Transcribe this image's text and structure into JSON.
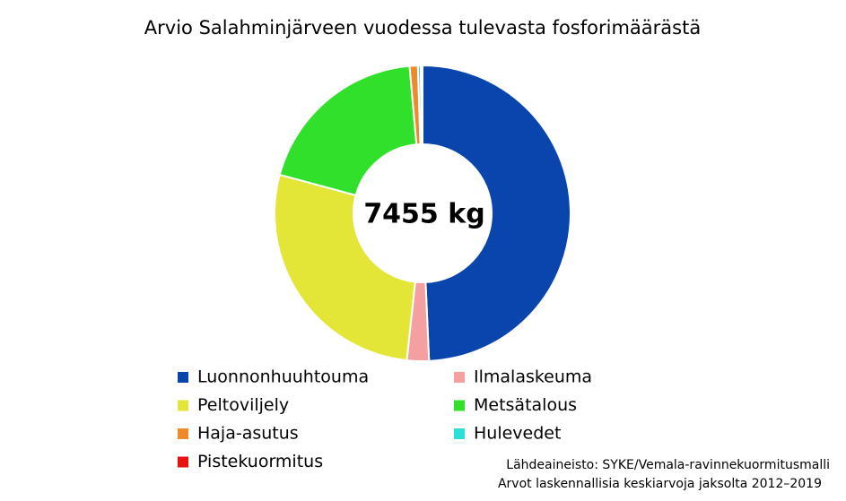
{
  "chart_data": {
    "type": "donut",
    "title": "Arvio Salahminjärveen vuodessa tulevasta fosforimäärästä",
    "center_label": "7455 kg",
    "categories": [
      "Luonnonhuuhtouma",
      "Ilmalaskeuma",
      "Peltoviljely",
      "Metsätalous",
      "Haja-asutus",
      "Hulevedet",
      "Pistekuormitus"
    ],
    "values": [
      49.3,
      2.4,
      27.5,
      19.4,
      0.9,
      0.3,
      0.2
    ],
    "colors": [
      "#0a45ad",
      "#f5a0a0",
      "#e3e636",
      "#30e02a",
      "#f0892a",
      "#2ce0d8",
      "#e81212"
    ],
    "source": [
      "Lähdeaineisto: SYKE/Vemala-ravinnekuormitusmalli",
      "Arvot laskennallisia keskiarvoja jaksolta 2012–2019"
    ]
  }
}
